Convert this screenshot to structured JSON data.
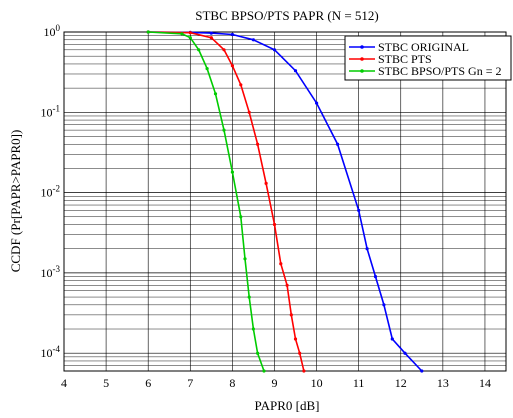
{
  "chart_data": {
    "type": "line",
    "title": "STBC BPSO/PTS PAPR (N = 512)",
    "xlabel": "PAPR0 [dB]",
    "ylabel": "CCDF (Pr[PAPR>PAPR0])",
    "xlim": [
      4,
      14.5
    ],
    "ylim": [
      6e-05,
      1
    ],
    "yscale": "log",
    "grid": true,
    "legend_position": "top-right",
    "x_ticks": [
      4,
      5,
      6,
      7,
      8,
      9,
      10,
      11,
      12,
      13,
      14
    ],
    "y_ticks": [
      {
        "base": "10",
        "exp": "0",
        "value": 1
      },
      {
        "base": "10",
        "exp": "-1",
        "value": 0.1
      },
      {
        "base": "10",
        "exp": "-2",
        "value": 0.01
      },
      {
        "base": "10",
        "exp": "-3",
        "value": 0.001
      },
      {
        "base": "10",
        "exp": "-4",
        "value": 0.0001
      }
    ],
    "series": [
      {
        "name": "STBC ORIGINAL",
        "color": "#0000ff",
        "marker": "dot",
        "x": [
          6.0,
          7.0,
          7.5,
          8.0,
          8.5,
          9.0,
          9.5,
          10.0,
          10.5,
          11.0,
          11.2,
          11.4,
          11.6,
          11.8,
          12.1,
          12.5
        ],
        "y": [
          1,
          0.99,
          0.97,
          0.93,
          0.8,
          0.6,
          0.33,
          0.13,
          0.04,
          0.006,
          0.002,
          0.0009,
          0.0004,
          0.00015,
          0.0001,
          6e-05
        ]
      },
      {
        "name": "STBC PTS",
        "color": "#ff0000",
        "marker": "dot",
        "x": [
          6.0,
          7.0,
          7.5,
          7.8,
          8.0,
          8.2,
          8.4,
          8.6,
          8.8,
          9.0,
          9.15,
          9.3,
          9.4,
          9.5,
          9.6,
          9.7
        ],
        "y": [
          1,
          0.98,
          0.85,
          0.6,
          0.38,
          0.22,
          0.1,
          0.04,
          0.013,
          0.004,
          0.0013,
          0.0007,
          0.0003,
          0.00015,
          0.0001,
          6e-05
        ]
      },
      {
        "name": "STBC BPSO/PTS Gn = 2",
        "color": "#00cc00",
        "marker": "dot",
        "x": [
          6.0,
          6.8,
          7.0,
          7.2,
          7.4,
          7.6,
          7.8,
          8.0,
          8.2,
          8.3,
          8.4,
          8.5,
          8.6,
          8.75
        ],
        "y": [
          1,
          0.95,
          0.85,
          0.6,
          0.35,
          0.17,
          0.06,
          0.018,
          0.005,
          0.0015,
          0.0005,
          0.0002,
          0.0001,
          6e-05
        ]
      }
    ]
  }
}
